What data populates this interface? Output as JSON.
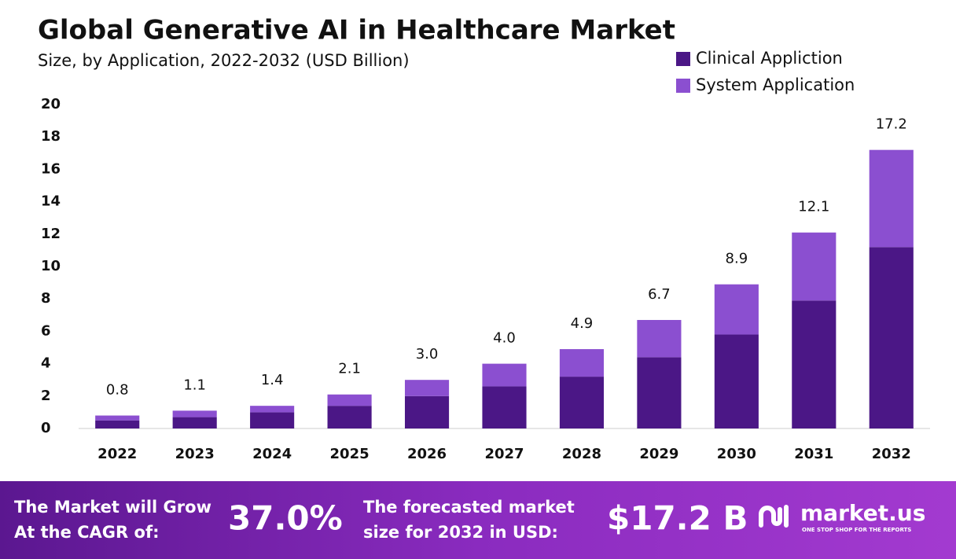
{
  "chart_data": {
    "type": "stacked_bar",
    "title": "Global Generative AI in Healthcare Market",
    "subtitle": "Size, by Application, 2022-2032 (USD Billion)",
    "categories": [
      "2022",
      "2023",
      "2024",
      "2025",
      "2026",
      "2027",
      "2028",
      "2029",
      "2030",
      "2031",
      "2032"
    ],
    "series": [
      {
        "name": "Clinical Appliction",
        "color": "#4b1786",
        "values": [
          0.5,
          0.7,
          1.0,
          1.4,
          2.0,
          2.6,
          3.2,
          4.4,
          5.8,
          7.9,
          11.2
        ]
      },
      {
        "name": "System Application",
        "color": "#8b4fd0",
        "values": [
          0.3,
          0.4,
          0.4,
          0.7,
          1.0,
          1.4,
          1.7,
          2.3,
          3.1,
          4.2,
          6.0
        ]
      }
    ],
    "totals": {
      "values": [
        0.8,
        1.1,
        1.4,
        2.1,
        3.0,
        4.0,
        4.9,
        6.7,
        8.9,
        12.1,
        17.2
      ],
      "value_labels": [
        "0.8",
        "1.1",
        "1.4",
        "2.1",
        "3.0",
        "4.0",
        "4.9",
        "6.7",
        "8.9",
        "12.1",
        "17.2"
      ]
    },
    "ylim": [
      0,
      20
    ],
    "yticks": [
      0,
      2,
      4,
      6,
      8,
      10,
      12,
      14,
      16,
      18,
      20
    ],
    "grid": false,
    "legend": "top-right"
  },
  "footer": {
    "cagr_text": [
      "The Market will Grow",
      "At the CAGR of:"
    ],
    "cagr": "37.0%",
    "forecast_text": [
      "The forecasted market",
      "size for 2032 in USD:"
    ],
    "forecast": "$17.2 B",
    "brand": "market.us",
    "tagline": "ONE STOP SHOP FOR THE REPORTS"
  }
}
